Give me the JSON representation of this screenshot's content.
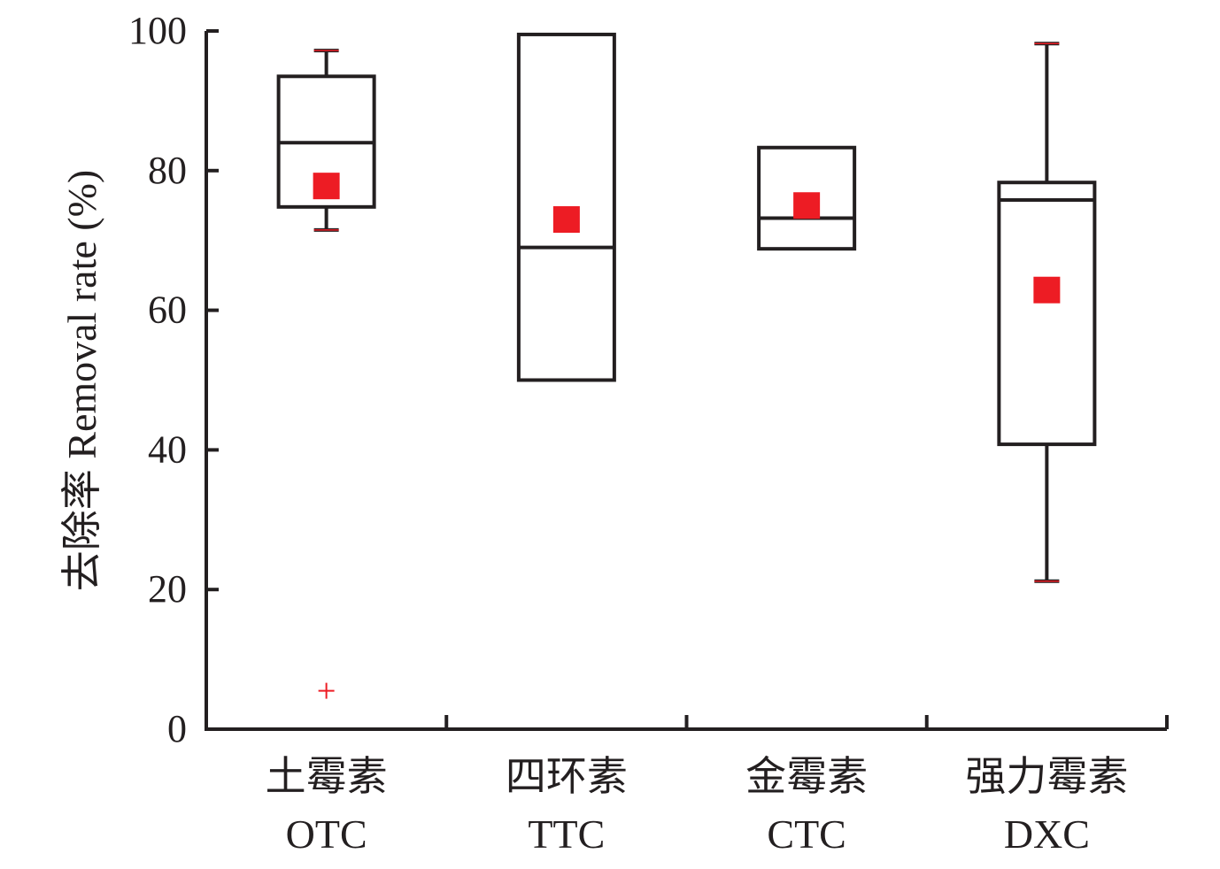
{
  "chart_data": {
    "type": "box",
    "ylabel": "去除率 Removal rate (%)",
    "ylim": [
      0,
      100
    ],
    "yticks": [
      "0",
      "20",
      "40",
      "60",
      "80",
      "100"
    ],
    "categories": [
      {
        "zh": "土霉素",
        "en": "OTC"
      },
      {
        "zh": "四环素",
        "en": "TTC"
      },
      {
        "zh": "金霉素",
        "en": "CTC"
      },
      {
        "zh": "强力霉素",
        "en": "DXC"
      }
    ],
    "boxes": [
      {
        "category": "OTC",
        "whisker_low": 71.5,
        "q1": 74.8,
        "median": 84.0,
        "q3": 93.5,
        "whisker_high": 97.2,
        "mean": 77.8,
        "outliers": [
          5.5
        ]
      },
      {
        "category": "TTC",
        "whisker_low": 50.0,
        "q1": 50.0,
        "median": 69.0,
        "q3": 99.5,
        "whisker_high": 99.5,
        "mean": 73.0,
        "outliers": []
      },
      {
        "category": "CTC",
        "whisker_low": 68.8,
        "q1": 68.8,
        "median": 73.2,
        "q3": 83.3,
        "whisker_high": 83.3,
        "mean": 75.0,
        "outliers": []
      },
      {
        "category": "DXC",
        "whisker_low": 21.2,
        "q1": 40.8,
        "median": 75.8,
        "q3": 78.3,
        "whisker_high": 98.2,
        "mean": 62.9,
        "outliers": []
      }
    ],
    "grid": false,
    "colors": {
      "box": "#231f20",
      "mean": "#ed1c24",
      "outlier": "#ed1c24",
      "cap": "#ed1c24"
    }
  }
}
